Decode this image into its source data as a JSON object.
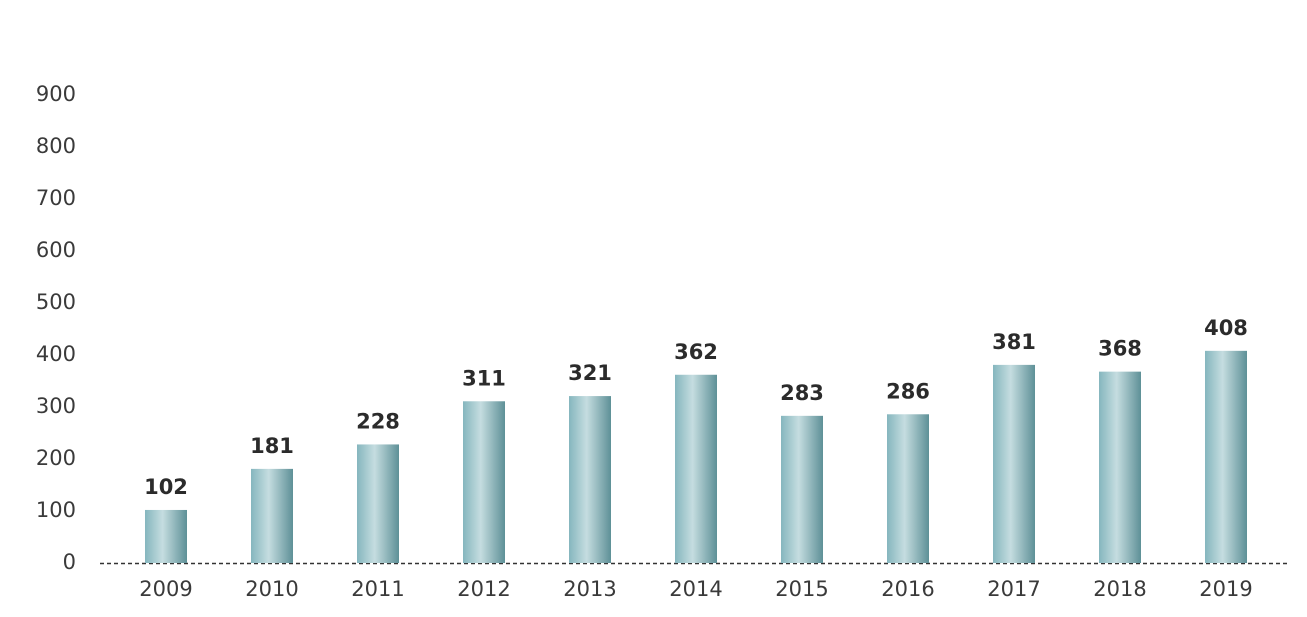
{
  "chart_data": {
    "type": "bar",
    "categories": [
      "2009",
      "2010",
      "2011",
      "2012",
      "2013",
      "2014",
      "2015",
      "2016",
      "2017",
      "2018",
      "2019"
    ],
    "values": [
      102,
      181,
      228,
      311,
      321,
      362,
      283,
      286,
      381,
      368,
      408
    ],
    "color": "#6fa9b2",
    "ylim": [
      0,
      900
    ],
    "yticks": [
      0,
      100,
      200,
      300,
      400,
      500,
      600,
      700,
      800,
      900
    ],
    "grid": false
  }
}
